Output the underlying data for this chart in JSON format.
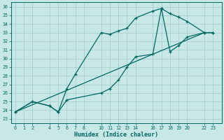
{
  "xlabel": "Humidex (Indice chaleur)",
  "bg_color": "#c8e8e8",
  "line_color": "#006860",
  "grid_color": "#a8cece",
  "yticks": [
    23,
    24,
    25,
    26,
    27,
    28,
    29,
    30,
    31,
    32,
    33,
    34,
    35,
    36
  ],
  "xticks": [
    0,
    1,
    2,
    4,
    5,
    6,
    7,
    8,
    10,
    11,
    12,
    13,
    14,
    16,
    17,
    18,
    19,
    20,
    22,
    23
  ],
  "ylim": [
    22.5,
    36.5
  ],
  "xlim": [
    -0.5,
    24.0
  ],
  "series": [
    {
      "x": [
        0,
        2,
        4,
        5,
        6,
        7,
        10,
        11,
        12,
        13,
        14,
        16,
        17,
        18,
        19,
        20,
        22,
        23
      ],
      "y": [
        23.8,
        25.0,
        24.5,
        23.8,
        26.5,
        28.2,
        33.0,
        32.8,
        33.2,
        33.5,
        34.7,
        35.5,
        35.8,
        35.2,
        34.8,
        34.3,
        33.0,
        33.0
      ]
    },
    {
      "x": [
        0,
        22,
        23
      ],
      "y": [
        23.8,
        33.0,
        33.0
      ]
    },
    {
      "x": [
        0,
        2,
        4,
        5,
        6,
        10,
        11,
        12,
        13,
        14,
        16,
        17,
        18,
        19,
        20,
        22,
        23
      ],
      "y": [
        23.8,
        25.0,
        24.5,
        23.8,
        25.2,
        26.0,
        26.5,
        27.5,
        29.0,
        30.2,
        30.5,
        35.8,
        30.8,
        31.5,
        32.5,
        33.0,
        33.0
      ]
    }
  ]
}
